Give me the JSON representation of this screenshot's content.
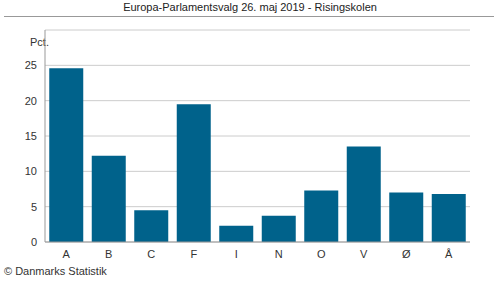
{
  "chart_data": {
    "type": "bar",
    "title": "Europa-Parlamentsvalg 26. maj 2019 - Risingskolen",
    "y_label": "Pct.",
    "annotations": [
      "© Danmarks Statistik"
    ],
    "categories": [
      "A",
      "B",
      "C",
      "F",
      "I",
      "N",
      "O",
      "V",
      "Ø",
      "Å"
    ],
    "values": [
      24.6,
      12.2,
      4.5,
      19.5,
      2.3,
      3.7,
      7.3,
      13.5,
      7.0,
      6.8
    ],
    "color": "#00628b",
    "ylim": [
      0,
      30
    ],
    "yticks": [
      0,
      5,
      10,
      15,
      20,
      25
    ],
    "grid": true
  }
}
